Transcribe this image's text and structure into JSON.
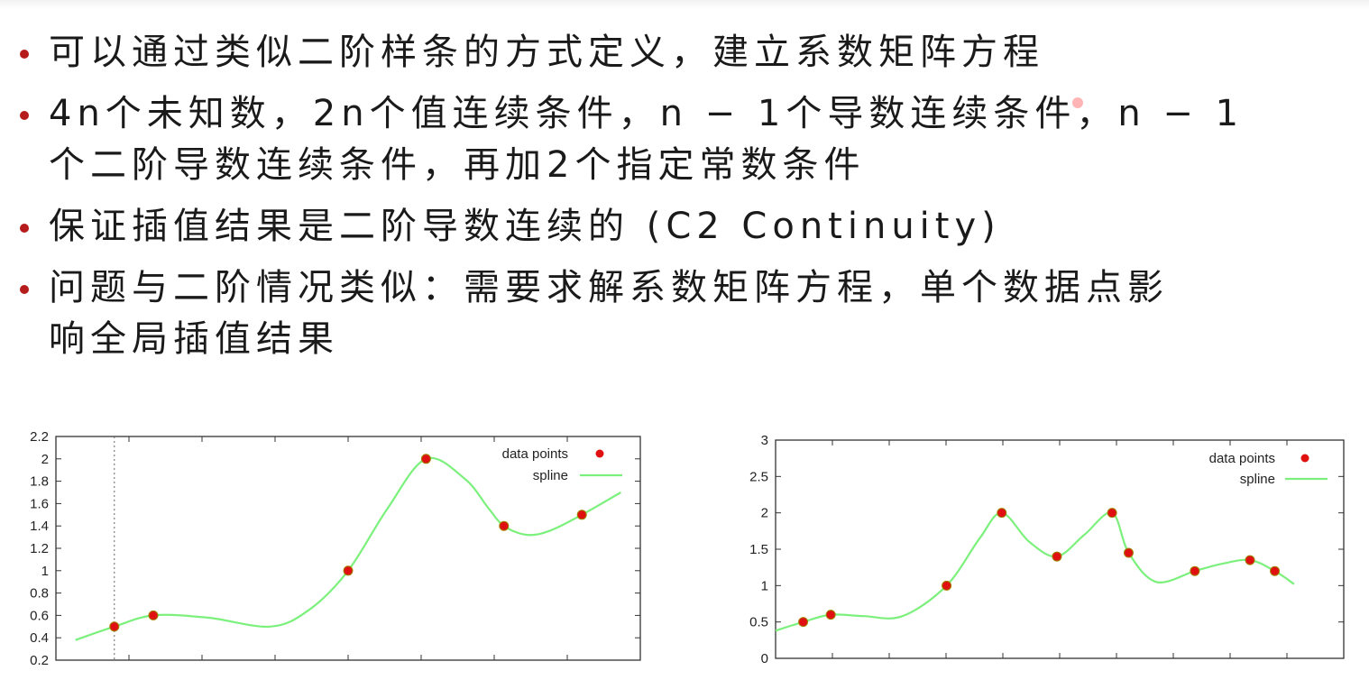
{
  "bullets": [
    {
      "lines": [
        "可以通过类似二阶样条的方式定义，建立系数矩阵方程"
      ]
    },
    {
      "lines": [
        "4n个未知数，2n个值连续条件，n − 1个导数连续条件，n − 1",
        "个二阶导数连续条件，再加2个指定常数条件"
      ]
    },
    {
      "lines": [
        "保证插值结果是二阶导数连续的 (C2 Continuity)"
      ]
    },
    {
      "lines": [
        "问题与二阶情况类似：需要求解系数矩阵方程，单个数据点影",
        "响全局插值结果"
      ]
    }
  ],
  "colors": {
    "bullet": "#b71c1c",
    "spline": "#7cf07c",
    "points": "#e01010"
  },
  "chart_data": [
    {
      "type": "line",
      "title": "",
      "xlabel": "",
      "ylabel": "",
      "ylim": [
        0.2,
        2.2
      ],
      "xlim": [
        -0.75,
        6.75
      ],
      "y_ticks": [
        "0.2",
        "0.4",
        "0.6",
        "0.8",
        "1",
        "1.2",
        "1.4",
        "1.6",
        "1.8",
        "2",
        "2.2"
      ],
      "grid": false,
      "legend_position": "top-right",
      "legend": [
        "data points",
        "spline"
      ],
      "dotted_vline_x": 0,
      "series": [
        {
          "name": "data points",
          "kind": "points",
          "x": [
            0,
            0.5,
            3,
            4,
            5,
            6
          ],
          "y": [
            0.5,
            0.6,
            1.0,
            2.0,
            1.4,
            1.5
          ]
        },
        {
          "name": "spline",
          "kind": "curve",
          "x": [
            -0.5,
            0,
            0.5,
            1.2,
            2.0,
            2.5,
            3,
            3.5,
            4,
            4.5,
            4.8,
            5,
            5.3,
            5.6,
            6,
            6.5
          ],
          "y": [
            0.38,
            0.5,
            0.6,
            0.58,
            0.5,
            0.65,
            1.0,
            1.55,
            2.0,
            1.82,
            1.56,
            1.4,
            1.32,
            1.36,
            1.5,
            1.7
          ]
        }
      ]
    },
    {
      "type": "line",
      "title": "",
      "xlabel": "",
      "ylabel": "",
      "ylim": [
        0,
        3
      ],
      "xlim": [
        -1.1,
        9.2
      ],
      "y_ticks": [
        "0",
        "0.5",
        "1",
        "1.5",
        "2",
        "2.5",
        "3"
      ],
      "grid": false,
      "legend_position": "top-right",
      "legend": [
        "data points",
        "spline"
      ],
      "series": [
        {
          "name": "data points",
          "kind": "points",
          "x": [
            -0.6,
            -0.1,
            2,
            3,
            4,
            5,
            5.3,
            6.5,
            7.5,
            7.95
          ],
          "y": [
            0.5,
            0.6,
            1.0,
            2.0,
            1.4,
            2.0,
            1.45,
            1.2,
            1.35,
            1.2
          ]
        },
        {
          "name": "spline",
          "kind": "curve",
          "x": [
            -1.1,
            -0.6,
            -0.1,
            0.5,
            1.2,
            2,
            2.6,
            3,
            3.5,
            4,
            4.5,
            5,
            5.3,
            5.8,
            6.5,
            7.0,
            7.5,
            7.95,
            8.3
          ],
          "y": [
            0.38,
            0.5,
            0.6,
            0.58,
            0.58,
            1.0,
            1.65,
            2.0,
            1.6,
            1.4,
            1.7,
            2.0,
            1.45,
            1.05,
            1.2,
            1.3,
            1.35,
            1.2,
            1.02
          ]
        }
      ]
    }
  ]
}
